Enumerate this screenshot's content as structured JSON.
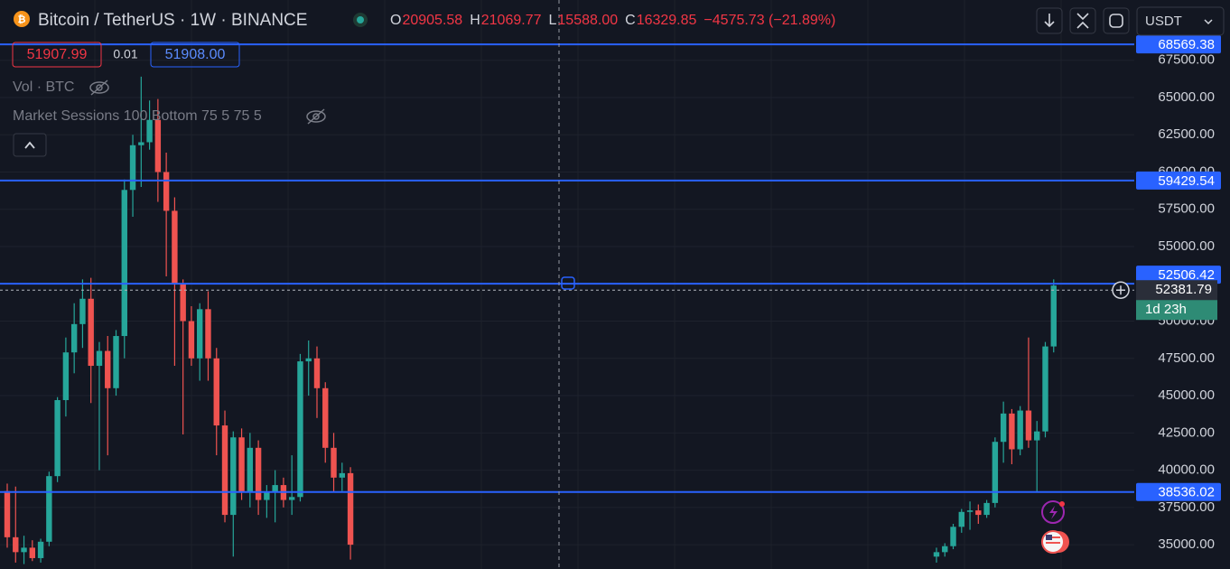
{
  "chart_data": {
    "type": "candlestick",
    "title": "Bitcoin / TetherUS · 1W · BINANCE",
    "legend_values": [
      {
        "label": "O",
        "value": "20905.58"
      },
      {
        "label": "H",
        "value": "21069.77"
      },
      {
        "label": "L",
        "value": "15588.00"
      },
      {
        "label": "C",
        "value": "16329.85"
      }
    ],
    "change": "−4575.73 (−21.89%)",
    "open": [
      38600,
      35500,
      34500,
      34800,
      34100,
      35200,
      39600,
      44700,
      47900,
      49800,
      51500,
      47000,
      48000,
      45500,
      49000,
      58800,
      61800,
      62000,
      63500,
      60000,
      57400,
      52500,
      50000,
      47500,
      50800,
      47500,
      43000,
      37000,
      42200,
      38500,
      41500,
      38000,
      38500,
      39000,
      38000,
      38200,
      47300,
      47500,
      45500,
      41500,
      39500,
      39800,
      null,
      null,
      null,
      null,
      null,
      null,
      null,
      null,
      null,
      null,
      null,
      null,
      null,
      null,
      null,
      null,
      null,
      null,
      null,
      null,
      null,
      null,
      null,
      null,
      null,
      null,
      null,
      null,
      null,
      null,
      null,
      null,
      null,
      null,
      null,
      null,
      null,
      null,
      null,
      null,
      null,
      null,
      null,
      null,
      null,
      null,
      null,
      null,
      null,
      null,
      null,
      null,
      null,
      null,
      null,
      null,
      null,
      null,
      null,
      null,
      null,
      null,
      null,
      null,
      null,
      null,
      null,
      null,
      null,
      34200,
      34500,
      34900,
      36200,
      37200,
      37300,
      37000,
      37800,
      41900,
      43800,
      41400,
      44000,
      42000,
      42600,
      48300
    ],
    "high": [
      39100,
      38900,
      35600,
      35300,
      35400,
      39900,
      44900,
      48900,
      51200,
      52800,
      52900,
      48600,
      49000,
      49400,
      59500,
      62500,
      66400,
      64800,
      64900,
      61300,
      58300,
      52800,
      51000,
      51200,
      52000,
      48200,
      44000,
      42600,
      42800,
      42500,
      42000,
      39000,
      40000,
      39500,
      41000,
      47800,
      48700,
      48300,
      45900,
      42500,
      40500,
      40200,
      null,
      null,
      null,
      null,
      null,
      null,
      null,
      null,
      null,
      null,
      null,
      null,
      null,
      null,
      null,
      null,
      null,
      null,
      null,
      null,
      null,
      null,
      null,
      null,
      null,
      null,
      null,
      null,
      null,
      null,
      null,
      null,
      null,
      null,
      null,
      null,
      null,
      null,
      null,
      null,
      null,
      null,
      null,
      null,
      null,
      null,
      null,
      null,
      null,
      null,
      null,
      null,
      null,
      null,
      null,
      null,
      null,
      null,
      null,
      null,
      null,
      null,
      null,
      null,
      null,
      null,
      null,
      null,
      null,
      34800,
      35100,
      36400,
      37400,
      37900,
      37700,
      38000,
      42200,
      44600,
      44100,
      44300,
      48900,
      43300,
      48600,
      52800
    ],
    "low": [
      34800,
      33800,
      33700,
      33900,
      33800,
      34900,
      39200,
      43600,
      46500,
      48200,
      44500,
      40000,
      41000,
      45000,
      47500,
      57000,
      59000,
      61500,
      58000,
      53000,
      47000,
      42400,
      47000,
      46000,
      46000,
      41000,
      36500,
      34200,
      38000,
      37500,
      37000,
      36800,
      36500,
      37500,
      37000,
      37900,
      45000,
      43500,
      40500,
      38500,
      38600,
      34000,
      null,
      null,
      null,
      null,
      null,
      null,
      null,
      null,
      null,
      null,
      null,
      null,
      null,
      null,
      null,
      null,
      null,
      null,
      null,
      null,
      null,
      null,
      null,
      null,
      null,
      null,
      null,
      null,
      null,
      null,
      null,
      null,
      null,
      null,
      null,
      null,
      null,
      null,
      null,
      null,
      null,
      null,
      null,
      null,
      null,
      null,
      null,
      null,
      null,
      null,
      null,
      null,
      null,
      null,
      null,
      null,
      null,
      null,
      null,
      null,
      null,
      null,
      null,
      null,
      null,
      null,
      null,
      null,
      null,
      33800,
      34200,
      34700,
      35800,
      36000,
      36400,
      36800,
      37500,
      40500,
      40400,
      41000,
      41500,
      38500,
      42200,
      47900
    ],
    "close": [
      35500,
      34500,
      34800,
      34100,
      35200,
      39600,
      44700,
      47900,
      49800,
      51500,
      47000,
      48000,
      45500,
      49000,
      58800,
      61800,
      62000,
      63500,
      60000,
      57400,
      52500,
      50000,
      47500,
      50800,
      47500,
      43000,
      37000,
      42200,
      38500,
      41500,
      38000,
      38500,
      39000,
      38000,
      38200,
      47300,
      47500,
      45500,
      41500,
      39500,
      39800,
      35000,
      null,
      null,
      null,
      null,
      null,
      null,
      null,
      null,
      null,
      null,
      null,
      null,
      null,
      null,
      null,
      null,
      null,
      null,
      null,
      null,
      null,
      null,
      null,
      null,
      null,
      null,
      null,
      null,
      null,
      null,
      null,
      null,
      null,
      null,
      null,
      null,
      null,
      null,
      null,
      null,
      null,
      null,
      null,
      null,
      null,
      null,
      null,
      null,
      null,
      null,
      null,
      null,
      null,
      null,
      null,
      null,
      null,
      null,
      null,
      null,
      null,
      null,
      null,
      null,
      null,
      null,
      null,
      null,
      null,
      34500,
      34900,
      36200,
      37200,
      37300,
      37000,
      37800,
      41900,
      43800,
      41400,
      44000,
      42000,
      42600,
      48300,
      52381.79
    ],
    "up_color": "#26a69a",
    "down_color": "#ef5350",
    "ylim": [
      33400,
      71300
    ],
    "yticks": [
      {
        "value": 35000,
        "label": "35000.00"
      },
      {
        "value": 37500,
        "label": "37500.00"
      },
      {
        "value": 40000,
        "label": "40000.00"
      },
      {
        "value": 42500,
        "label": "42500.00"
      },
      {
        "value": 45000,
        "label": "45000.00"
      },
      {
        "value": 47500,
        "label": "47500.00"
      },
      {
        "value": 50000,
        "label": "50000.00"
      },
      {
        "value": 52500,
        "label": "52500.00"
      },
      {
        "value": 55000,
        "label": "55000.00"
      },
      {
        "value": 57500,
        "label": "57500.00"
      },
      {
        "value": 60000,
        "label": "60000.00"
      },
      {
        "value": 62500,
        "label": "62500.00"
      },
      {
        "value": 65000,
        "label": "65000.00"
      },
      {
        "value": 67500,
        "label": "67500.00"
      }
    ],
    "grid": true,
    "levels": [
      68569.38,
      59429.54,
      52506.42,
      38536.02
    ],
    "level_color": "#2962ff",
    "last_price": 52381.79,
    "countdown": "1d 23h"
  },
  "toolbar": {
    "sell": "51907.99",
    "spread": "0.01",
    "buy": "51908.00",
    "currency": "USDT",
    "indicators": [
      "Vol · BTC",
      "Market Sessions 100 Bottom 75 5 75 5"
    ]
  }
}
